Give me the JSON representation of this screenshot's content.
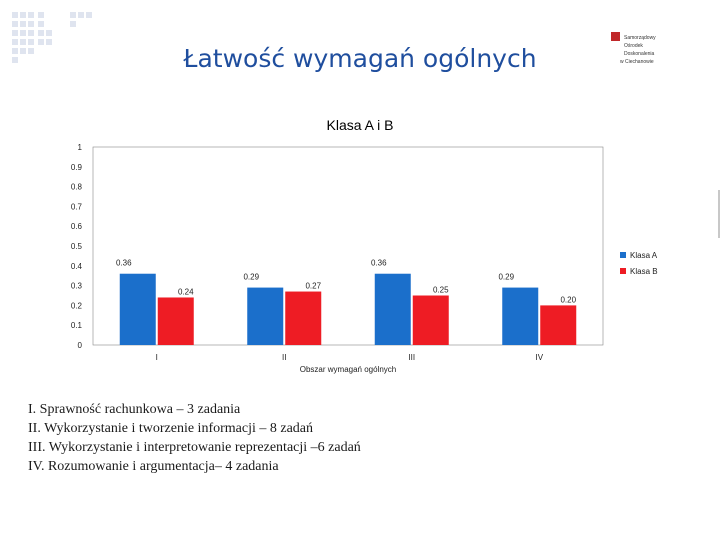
{
  "slide_title": "Łatwość wymagań ogólnych",
  "logo": {
    "text": "Samorządowy Ośrodek Doskonalenia w Ciechanowie",
    "accent_color": "#c0282a"
  },
  "colors": {
    "series_a": "#1b6fcb",
    "series_b": "#ee1c24",
    "title": "#1f4e9e",
    "deco": "#dfe4ef"
  },
  "chart_data": {
    "type": "bar",
    "title": "Klasa A i B",
    "xlabel": "Obszar wymagań ogólnych",
    "ylabel": "",
    "ylim": [
      0,
      1
    ],
    "yticks": [
      "0",
      "0.1",
      "0.2",
      "0.3",
      "0.4",
      "0.5",
      "0.6",
      "0.7",
      "0.8",
      "0.9",
      "1"
    ],
    "categories": [
      "I",
      "II",
      "III",
      "IV"
    ],
    "series": [
      {
        "name": "Klasa A",
        "values": [
          0.36,
          0.29,
          0.36,
          0.29
        ],
        "labels": [
          "0.36",
          "0.29",
          "0.36",
          "0.29"
        ]
      },
      {
        "name": "Klasa B",
        "values": [
          0.24,
          0.27,
          0.25,
          0.2
        ],
        "labels": [
          "0.24",
          "0.27",
          "0.25",
          "0.20"
        ]
      }
    ],
    "legend_position": "right",
    "grid": false
  },
  "description": [
    "I.  Sprawność rachunkowa – 3 zadania",
    "II.  Wykorzystanie i tworzenie informacji – 8 zadań",
    "III.  Wykorzystanie i interpretowanie reprezentacji –6 zadań",
    "IV. Rozumowanie i argumentacja– 4 zadania"
  ]
}
